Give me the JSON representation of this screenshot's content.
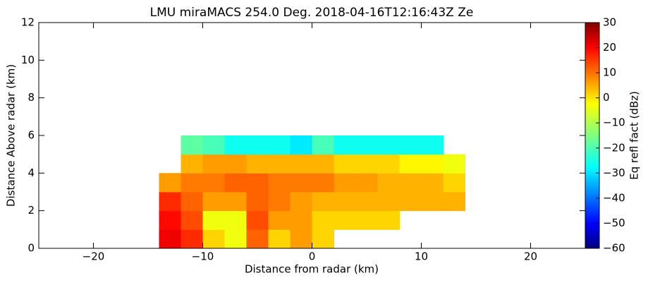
{
  "chart_data": {
    "type": "heatmap",
    "title": "LMU miraMACS 254.0 Deg. 2018-04-16T12:16:43Z  Ze",
    "x_label": "Distance from radar (km)",
    "y_label": "Distance Above radar  (km)",
    "colorbar_label": "Eq refl fact (dBz)",
    "colormap": "jet",
    "x_edges": [
      -14,
      -12,
      -10,
      -8,
      -6,
      -4,
      -2,
      0,
      2,
      4,
      6,
      8,
      10,
      12,
      14
    ],
    "y_edges": [
      0,
      1,
      2,
      3,
      4,
      5,
      6
    ],
    "values": [
      [
        20,
        15,
        0,
        -5,
        10,
        0,
        5,
        0,
        null,
        null,
        null,
        null,
        null,
        null
      ],
      [
        18,
        12,
        -5,
        -5,
        12,
        5,
        5,
        0,
        0,
        0,
        0,
        null,
        null,
        null
      ],
      [
        15,
        10,
        5,
        5,
        10,
        8,
        5,
        3,
        3,
        3,
        3,
        3,
        3,
        3
      ],
      [
        5,
        8,
        8,
        10,
        10,
        8,
        8,
        8,
        5,
        5,
        3,
        3,
        3,
        0
      ],
      [
        null,
        3,
        5,
        5,
        3,
        3,
        3,
        3,
        0,
        0,
        0,
        -3,
        -3,
        -5
      ],
      [
        null,
        -18,
        -20,
        -25,
        -25,
        -25,
        -28,
        -20,
        -25,
        -25,
        -25,
        -25,
        -25,
        null
      ]
    ],
    "xlim": [
      -25,
      25
    ],
    "xticks": [
      {
        "value": -20,
        "label": "−20"
      },
      {
        "value": -10,
        "label": "−10"
      },
      0,
      10,
      20
    ],
    "ylim": [
      0,
      12
    ],
    "yticks": [
      0,
      2,
      4,
      6,
      8,
      10,
      12
    ],
    "clim": [
      -60,
      30
    ],
    "cticks": [
      {
        "value": -60,
        "label": "−60"
      },
      {
        "value": -50,
        "label": "−50"
      },
      {
        "value": -40,
        "label": "−40"
      },
      {
        "value": -30,
        "label": "−30"
      },
      {
        "value": -20,
        "label": "−20"
      },
      {
        "value": -10,
        "label": "−10"
      },
      0,
      10,
      20,
      30
    ]
  }
}
